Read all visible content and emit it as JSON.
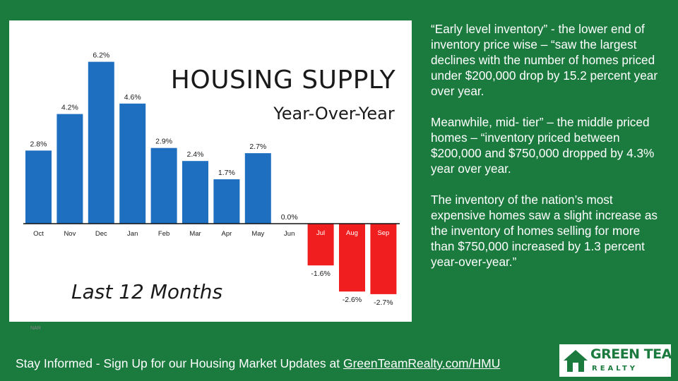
{
  "chart_data": {
    "type": "bar",
    "title": "HOUSING SUPPLY",
    "subtitle": "Year-Over-Year",
    "annotation": "Last 12 Months",
    "source": "NAR",
    "categories": [
      "Oct",
      "Nov",
      "Dec",
      "Jan",
      "Feb",
      "Mar",
      "Apr",
      "May",
      "Jun",
      "Jul",
      "Aug",
      "Sep"
    ],
    "values": [
      2.8,
      4.2,
      6.2,
      4.6,
      2.9,
      2.4,
      1.7,
      2.7,
      0.0,
      -1.6,
      -2.6,
      -2.7
    ],
    "data_labels": [
      "2.8%",
      "4.2%",
      "6.2%",
      "4.6%",
      "2.9%",
      "2.4%",
      "1.7%",
      "2.7%",
      "0.0%",
      "-1.6%",
      "-2.6%",
      "-2.7%"
    ],
    "colors": {
      "positive": "#1f6fc1",
      "negative": "#f01e1e"
    },
    "grid": false,
    "legend": "none"
  },
  "side_text": {
    "p1": "“Early level inventory” - the lower end of inventory price wise – “saw the largest declines with the number of homes priced under $200,000 drop by 15.2 percent year over year.",
    "p2": "Meanwhile, mid- tier” – the middle priced homes – “inventory priced between $200,000 and $750,000 dropped by 4.3% year over year.",
    "p3": "The inventory of the nation’s most expensive homes saw a slight increase as the inventory of homes selling for more than $750,000 increased by 1.3 percent year-over-year.”"
  },
  "footer": {
    "text": "Stay Informed - Sign Up for our Housing Market Updates at ",
    "link": "GreenTeamRealty.com/HMU"
  },
  "logo": {
    "name": "GREEN TEAM",
    "sub": "REALTY",
    "icon": "house-icon"
  },
  "colors": {
    "background": "#1b7a3e",
    "panel": "#ffffff"
  }
}
